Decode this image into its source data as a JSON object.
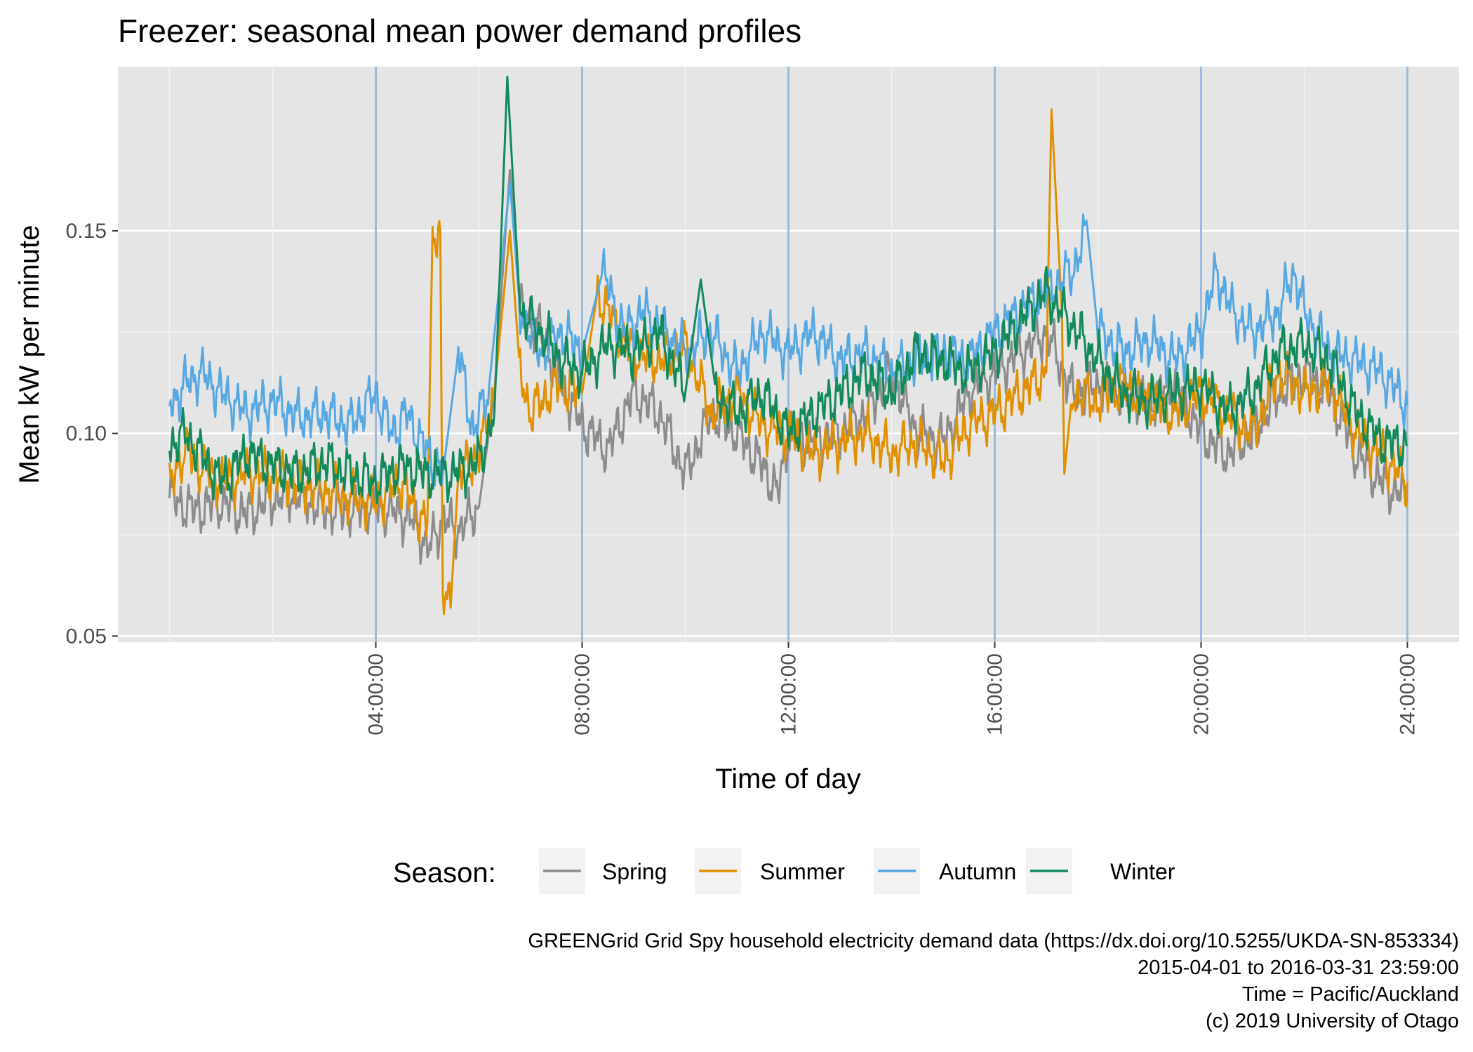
{
  "chart_data": {
    "type": "line",
    "title": "Freezer: seasonal mean power demand profiles",
    "xlabel": "Time of day",
    "ylabel": "Mean kW per minute",
    "xlim": [
      -1,
      25
    ],
    "ylim": [
      0.0485,
      0.1905
    ],
    "y_ticks": [
      0.05,
      0.1,
      0.15
    ],
    "y_tick_labels": [
      "0.05",
      "0.10",
      "0.15"
    ],
    "x_ticks": [
      4,
      8,
      12,
      16,
      20,
      24
    ],
    "x_tick_labels": [
      "04:00:00",
      "08:00:00",
      "12:00:00",
      "16:00:00",
      "20:00:00",
      "24:00:00"
    ],
    "vlines": [
      4,
      8,
      12,
      16,
      20,
      24
    ],
    "vline_color": "#99bbdd",
    "grid": true,
    "background": "#e5e5e5",
    "legend": {
      "title": "Season:",
      "position": "bottom",
      "entries": [
        "Spring",
        "Summer",
        "Autumn",
        "Winter"
      ]
    },
    "series": [
      {
        "name": "Spring",
        "color": "#8c8c8c",
        "points": [
          [
            0,
            0.084
          ],
          [
            0.5,
            0.081
          ],
          [
            1,
            0.083
          ],
          [
            1.5,
            0.08
          ],
          [
            2,
            0.084
          ],
          [
            2.5,
            0.085
          ],
          [
            3,
            0.081
          ],
          [
            3.5,
            0.081
          ],
          [
            4,
            0.082
          ],
          [
            4.5,
            0.08
          ],
          [
            4.8,
            0.078
          ],
          [
            5.0,
            0.071
          ],
          [
            5.3,
            0.079
          ],
          [
            5.6,
            0.076
          ],
          [
            6.0,
            0.082
          ],
          [
            6.3,
            0.11
          ],
          [
            6.6,
            0.165
          ],
          [
            6.8,
            0.13
          ],
          [
            7.2,
            0.125
          ],
          [
            7.6,
            0.112
          ],
          [
            8.0,
            0.102
          ],
          [
            8.5,
            0.096
          ],
          [
            9.0,
            0.11
          ],
          [
            9.5,
            0.105
          ],
          [
            10.0,
            0.09
          ],
          [
            10.5,
            0.105
          ],
          [
            11.0,
            0.1
          ],
          [
            11.5,
            0.092
          ],
          [
            11.8,
            0.085
          ],
          [
            12.0,
            0.1
          ],
          [
            12.5,
            0.098
          ],
          [
            13.0,
            0.1
          ],
          [
            13.5,
            0.105
          ],
          [
            14.0,
            0.115
          ],
          [
            14.5,
            0.1
          ],
          [
            15.0,
            0.098
          ],
          [
            15.5,
            0.11
          ],
          [
            16.0,
            0.115
          ],
          [
            16.5,
            0.12
          ],
          [
            17.0,
            0.125
          ],
          [
            17.5,
            0.11
          ],
          [
            18.0,
            0.112
          ],
          [
            18.5,
            0.11
          ],
          [
            19.0,
            0.108
          ],
          [
            19.5,
            0.112
          ],
          [
            20.0,
            0.1
          ],
          [
            20.5,
            0.095
          ],
          [
            21.0,
            0.1
          ],
          [
            21.5,
            0.11
          ],
          [
            22.0,
            0.115
          ],
          [
            22.5,
            0.11
          ],
          [
            23.0,
            0.095
          ],
          [
            23.5,
            0.088
          ],
          [
            24.0,
            0.084
          ]
        ]
      },
      {
        "name": "Summer",
        "color": "#e09000",
        "points": [
          [
            0,
            0.087
          ],
          [
            0.3,
            0.096
          ],
          [
            0.6,
            0.092
          ],
          [
            1,
            0.088
          ],
          [
            1.5,
            0.09
          ],
          [
            2,
            0.09
          ],
          [
            2.5,
            0.087
          ],
          [
            3,
            0.086
          ],
          [
            3.5,
            0.084
          ],
          [
            4,
            0.083
          ],
          [
            4.5,
            0.088
          ],
          [
            4.8,
            0.08
          ],
          [
            5.0,
            0.078
          ],
          [
            5.1,
            0.15
          ],
          [
            5.25,
            0.15
          ],
          [
            5.3,
            0.06
          ],
          [
            5.45,
            0.057
          ],
          [
            5.6,
            0.09
          ],
          [
            6.0,
            0.095
          ],
          [
            6.3,
            0.11
          ],
          [
            6.6,
            0.15
          ],
          [
            6.8,
            0.115
          ],
          [
            7.0,
            0.105
          ],
          [
            7.5,
            0.112
          ],
          [
            8.0,
            0.11
          ],
          [
            8.3,
            0.135
          ],
          [
            8.7,
            0.125
          ],
          [
            9.0,
            0.12
          ],
          [
            9.5,
            0.118
          ],
          [
            10.0,
            0.122
          ],
          [
            10.5,
            0.105
          ],
          [
            11.0,
            0.11
          ],
          [
            11.5,
            0.102
          ],
          [
            12.0,
            0.1
          ],
          [
            12.5,
            0.095
          ],
          [
            13.0,
            0.098
          ],
          [
            13.5,
            0.1
          ],
          [
            14.0,
            0.095
          ],
          [
            14.5,
            0.098
          ],
          [
            15.0,
            0.093
          ],
          [
            15.5,
            0.102
          ],
          [
            16.0,
            0.105
          ],
          [
            16.5,
            0.11
          ],
          [
            17.0,
            0.115
          ],
          [
            17.1,
            0.18
          ],
          [
            17.3,
            0.13
          ],
          [
            17.35,
            0.09
          ],
          [
            17.5,
            0.11
          ],
          [
            18.0,
            0.108
          ],
          [
            18.5,
            0.112
          ],
          [
            19.0,
            0.108
          ],
          [
            19.5,
            0.105
          ],
          [
            20.0,
            0.11
          ],
          [
            20.5,
            0.105
          ],
          [
            21.0,
            0.1
          ],
          [
            21.5,
            0.115
          ],
          [
            22.0,
            0.11
          ],
          [
            22.5,
            0.112
          ],
          [
            23.0,
            0.1
          ],
          [
            23.5,
            0.095
          ],
          [
            24.0,
            0.088
          ]
        ]
      },
      {
        "name": "Autumn",
        "color": "#56a8e3",
        "points": [
          [
            0,
            0.107
          ],
          [
            0.3,
            0.112
          ],
          [
            0.6,
            0.115
          ],
          [
            1,
            0.11
          ],
          [
            1.5,
            0.105
          ],
          [
            2,
            0.108
          ],
          [
            2.5,
            0.104
          ],
          [
            3,
            0.105
          ],
          [
            3.5,
            0.102
          ],
          [
            4,
            0.11
          ],
          [
            4.3,
            0.1
          ],
          [
            4.6,
            0.105
          ],
          [
            5.0,
            0.095
          ],
          [
            5.3,
            0.09
          ],
          [
            5.6,
            0.12
          ],
          [
            5.9,
            0.1
          ],
          [
            6.2,
            0.112
          ],
          [
            6.6,
            0.162
          ],
          [
            6.8,
            0.13
          ],
          [
            7.2,
            0.12
          ],
          [
            7.6,
            0.125
          ],
          [
            8.0,
            0.12
          ],
          [
            8.4,
            0.14
          ],
          [
            8.8,
            0.125
          ],
          [
            9.2,
            0.13
          ],
          [
            9.6,
            0.125
          ],
          [
            10.0,
            0.12
          ],
          [
            10.5,
            0.125
          ],
          [
            11.0,
            0.115
          ],
          [
            11.5,
            0.125
          ],
          [
            12.0,
            0.12
          ],
          [
            12.5,
            0.125
          ],
          [
            13.0,
            0.118
          ],
          [
            13.5,
            0.12
          ],
          [
            14.0,
            0.115
          ],
          [
            14.5,
            0.118
          ],
          [
            15.0,
            0.12
          ],
          [
            15.5,
            0.118
          ],
          [
            16.0,
            0.125
          ],
          [
            16.5,
            0.13
          ],
          [
            17.0,
            0.135
          ],
          [
            17.5,
            0.14
          ],
          [
            17.8,
            0.15
          ],
          [
            18.0,
            0.125
          ],
          [
            18.5,
            0.12
          ],
          [
            19.0,
            0.123
          ],
          [
            19.5,
            0.118
          ],
          [
            20.0,
            0.125
          ],
          [
            20.3,
            0.14
          ],
          [
            20.6,
            0.13
          ],
          [
            21.0,
            0.125
          ],
          [
            21.5,
            0.13
          ],
          [
            21.8,
            0.14
          ],
          [
            22.0,
            0.13
          ],
          [
            22.5,
            0.12
          ],
          [
            23.0,
            0.118
          ],
          [
            23.5,
            0.115
          ],
          [
            24.0,
            0.107
          ]
        ]
      },
      {
        "name": "Winter",
        "color": "#128a5a",
        "points": [
          [
            0,
            0.097
          ],
          [
            0.3,
            0.1
          ],
          [
            0.6,
            0.095
          ],
          [
            1,
            0.088
          ],
          [
            1.5,
            0.095
          ],
          [
            2,
            0.092
          ],
          [
            2.5,
            0.09
          ],
          [
            3,
            0.093
          ],
          [
            3.5,
            0.09
          ],
          [
            4,
            0.088
          ],
          [
            4.5,
            0.092
          ],
          [
            5.0,
            0.09
          ],
          [
            5.5,
            0.09
          ],
          [
            6.0,
            0.093
          ],
          [
            6.3,
            0.105
          ],
          [
            6.55,
            0.188
          ],
          [
            6.8,
            0.13
          ],
          [
            7.2,
            0.125
          ],
          [
            7.6,
            0.118
          ],
          [
            8.0,
            0.115
          ],
          [
            8.5,
            0.122
          ],
          [
            9.0,
            0.12
          ],
          [
            9.5,
            0.125
          ],
          [
            10.0,
            0.11
          ],
          [
            10.3,
            0.138
          ],
          [
            10.6,
            0.11
          ],
          [
            11.0,
            0.105
          ],
          [
            11.5,
            0.11
          ],
          [
            12.0,
            0.1
          ],
          [
            12.5,
            0.105
          ],
          [
            13.0,
            0.11
          ],
          [
            13.5,
            0.115
          ],
          [
            14.0,
            0.11
          ],
          [
            14.5,
            0.12
          ],
          [
            15.0,
            0.118
          ],
          [
            15.5,
            0.115
          ],
          [
            16.0,
            0.12
          ],
          [
            16.5,
            0.128
          ],
          [
            17.0,
            0.135
          ],
          [
            17.3,
            0.13
          ],
          [
            17.6,
            0.125
          ],
          [
            18.0,
            0.118
          ],
          [
            18.5,
            0.11
          ],
          [
            19.0,
            0.108
          ],
          [
            19.5,
            0.11
          ],
          [
            20.0,
            0.112
          ],
          [
            20.5,
            0.105
          ],
          [
            21.0,
            0.11
          ],
          [
            21.5,
            0.12
          ],
          [
            22.0,
            0.122
          ],
          [
            22.5,
            0.118
          ],
          [
            23.0,
            0.105
          ],
          [
            23.5,
            0.098
          ],
          [
            24.0,
            0.097
          ]
        ]
      }
    ],
    "caption": [
      "GREENGrid Grid Spy household electricity demand data (https://dx.doi.org/10.5255/UKDA-SN-853334)",
      "2015-04-01 to 2016-03-31 23:59:00",
      "Time = Pacific/Auckland",
      "(c) 2019 University of Otago"
    ]
  }
}
